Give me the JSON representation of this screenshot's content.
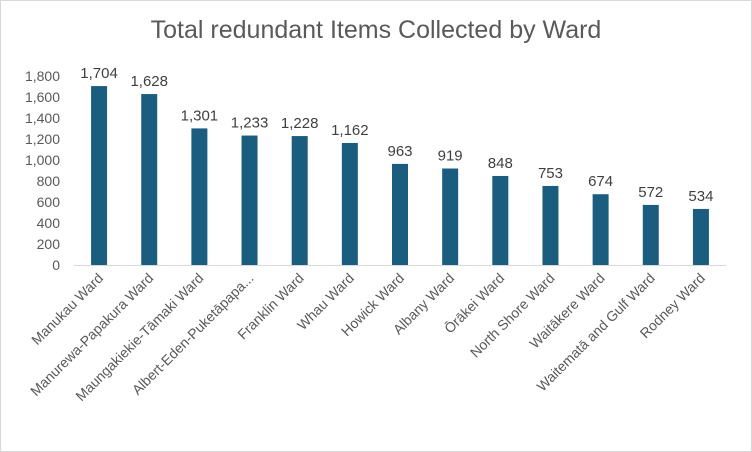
{
  "chart_data": {
    "type": "bar",
    "title": "Total redundant Items Collected by Ward",
    "xlabel": "",
    "ylabel": "",
    "ylim": [
      0,
      1800
    ],
    "yticks": [
      0,
      200,
      400,
      600,
      800,
      1000,
      1200,
      1400,
      1600,
      1800
    ],
    "ytick_labels": [
      "0",
      "200",
      "400",
      "600",
      "800",
      "1,000",
      "1,200",
      "1,400",
      "1,600",
      "1,800"
    ],
    "grid": false,
    "legend": "none",
    "bar_color": "#1a5d7f",
    "categories": [
      "Manukau Ward",
      "Manurewa-Papakura Ward",
      "Maungakiekie-Tāmaki Ward",
      "Albert-Eden-Puketāpapa...",
      "Franklin Ward",
      "Whau Ward",
      "Howick Ward",
      "Albany Ward",
      "Ōrākei Ward",
      "North Shore Ward",
      "Waitākere Ward",
      "Waitematā and Gulf Ward",
      "Rodney Ward"
    ],
    "values": [
      1704,
      1628,
      1301,
      1233,
      1228,
      1162,
      963,
      919,
      848,
      753,
      674,
      572,
      534
    ],
    "value_labels": [
      "1,704",
      "1,628",
      "1,301",
      "1,233",
      "1,228",
      "1,162",
      "963",
      "919",
      "848",
      "753",
      "674",
      "572",
      "534"
    ]
  }
}
